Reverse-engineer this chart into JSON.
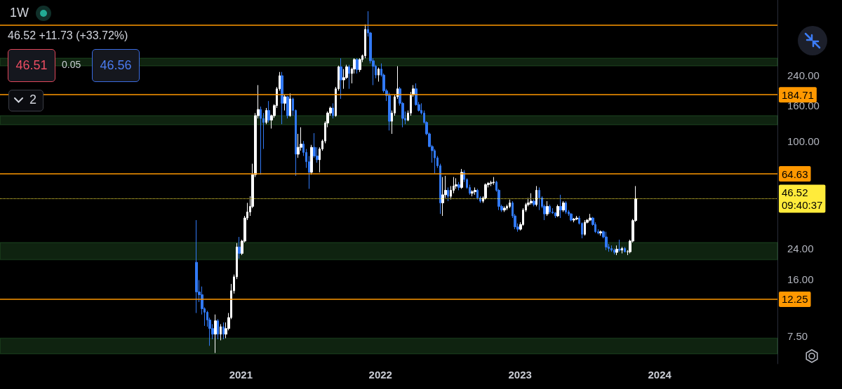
{
  "chart_data": {
    "type": "candlestick",
    "title": "1W",
    "annotations": [
      "46.52 +11.73 (+33.72%)",
      "46.51",
      "0.05",
      "46.56",
      "2",
      "09:40:37"
    ],
    "x": [
      "2020-09-07",
      "2020-09-14",
      "2020-09-21",
      "2020-09-28",
      "2020-10-05",
      "2020-10-12",
      "2020-10-19",
      "2020-10-26",
      "2020-11-02",
      "2020-11-09",
      "2020-11-16",
      "2020-11-23",
      "2020-11-30",
      "2020-12-07",
      "2020-12-14",
      "2020-12-21",
      "2020-12-28",
      "2021-01-04",
      "2021-01-11",
      "2021-01-18",
      "2021-01-25",
      "2021-02-01",
      "2021-02-08",
      "2021-02-15",
      "2021-02-22",
      "2021-03-01",
      "2021-03-08",
      "2021-03-15",
      "2021-03-22",
      "2021-03-29",
      "2021-04-05",
      "2021-04-12",
      "2021-04-19",
      "2021-04-26",
      "2021-05-03",
      "2021-05-10",
      "2021-05-17",
      "2021-05-24",
      "2021-05-31",
      "2021-06-07",
      "2021-06-14",
      "2021-06-21",
      "2021-06-28",
      "2021-07-05",
      "2021-07-12",
      "2021-07-19",
      "2021-07-26",
      "2021-08-02",
      "2021-08-09",
      "2021-08-16",
      "2021-08-23",
      "2021-08-30",
      "2021-09-06",
      "2021-09-13",
      "2021-09-20",
      "2021-09-27",
      "2021-10-04",
      "2021-10-11",
      "2021-10-18",
      "2021-10-25",
      "2021-11-01",
      "2021-11-08",
      "2021-11-15",
      "2021-11-22",
      "2021-11-29",
      "2021-12-06",
      "2021-12-13",
      "2021-12-20",
      "2021-12-27",
      "2022-01-03",
      "2022-01-10",
      "2022-01-17",
      "2022-01-24",
      "2022-01-31",
      "2022-02-07",
      "2022-02-14",
      "2022-02-21",
      "2022-02-28",
      "2022-03-07",
      "2022-03-14",
      "2022-03-21",
      "2022-03-28",
      "2022-04-04",
      "2022-04-11",
      "2022-04-18",
      "2022-04-25",
      "2022-05-02",
      "2022-05-09",
      "2022-05-16",
      "2022-05-23",
      "2022-05-30",
      "2022-06-06",
      "2022-06-13",
      "2022-06-20",
      "2022-06-27",
      "2022-07-04",
      "2022-07-11",
      "2022-07-18",
      "2022-07-25",
      "2022-08-01",
      "2022-08-08",
      "2022-08-15",
      "2022-08-22",
      "2022-08-29",
      "2022-09-05",
      "2022-09-12",
      "2022-09-19",
      "2022-09-26",
      "2022-10-03",
      "2022-10-10",
      "2022-10-17",
      "2022-10-24",
      "2022-10-31",
      "2022-11-07",
      "2022-11-14",
      "2022-11-21",
      "2022-11-28",
      "2022-12-05",
      "2022-12-12",
      "2022-12-19",
      "2022-12-26",
      "2023-01-02",
      "2023-01-09",
      "2023-01-16",
      "2023-01-23",
      "2023-01-30",
      "2023-02-06",
      "2023-02-13",
      "2023-02-20",
      "2023-02-27",
      "2023-03-06",
      "2023-03-13",
      "2023-03-20",
      "2023-03-27",
      "2023-04-03",
      "2023-04-10",
      "2023-04-17",
      "2023-04-24",
      "2023-05-01",
      "2023-05-08",
      "2023-05-15",
      "2023-05-22",
      "2023-05-29",
      "2023-06-05",
      "2023-06-12",
      "2023-06-19",
      "2023-06-26",
      "2023-07-03",
      "2023-07-10",
      "2023-07-17",
      "2023-07-24",
      "2023-07-31",
      "2023-08-07",
      "2023-08-14",
      "2023-08-21",
      "2023-08-28",
      "2023-09-04",
      "2023-09-11",
      "2023-09-18",
      "2023-09-25",
      "2023-10-02",
      "2023-10-09",
      "2023-10-16",
      "2023-10-23",
      "2023-10-30"
    ],
    "ohlc": [
      [
        20,
        35,
        10.2,
        13.5
      ],
      [
        13.5,
        15.8,
        11.8,
        13
      ],
      [
        13,
        14.5,
        10,
        10.8
      ],
      [
        10.8,
        11,
        8.6,
        10.3
      ],
      [
        10.3,
        10.5,
        8.5,
        9.3
      ],
      [
        9.3,
        9.6,
        6.6,
        8.3
      ],
      [
        8.3,
        8.8,
        7.2,
        7.7
      ],
      [
        7.7,
        10,
        6,
        9.2
      ],
      [
        9.2,
        9.4,
        7.2,
        7.7
      ],
      [
        7.7,
        8.8,
        7.1,
        8.5
      ],
      [
        8.5,
        9,
        7.2,
        7.7
      ],
      [
        7.7,
        9,
        7.3,
        8.3
      ],
      [
        8.3,
        10.2,
        8.1,
        9.6
      ],
      [
        9.6,
        15,
        9.4,
        13.7
      ],
      [
        13.7,
        17,
        13.2,
        16.5
      ],
      [
        16.5,
        25.8,
        16,
        24.5
      ],
      [
        24.5,
        28,
        21,
        22.5
      ],
      [
        22.5,
        27,
        22,
        26.5
      ],
      [
        26.5,
        37,
        26,
        36
      ],
      [
        36,
        44,
        35,
        39
      ],
      [
        39,
        48,
        37,
        42
      ],
      [
        42,
        74,
        41,
        64
      ],
      [
        64,
        145,
        62,
        140
      ],
      [
        140,
        210,
        135,
        152
      ],
      [
        152,
        158,
        64,
        135
      ],
      [
        135,
        145,
        90,
        128
      ],
      [
        128,
        155,
        125,
        150
      ],
      [
        150,
        170,
        128,
        132
      ],
      [
        132,
        142,
        118,
        140
      ],
      [
        140,
        163,
        136,
        160
      ],
      [
        160,
        205,
        155,
        200
      ],
      [
        200,
        250,
        195,
        238
      ],
      [
        238,
        250,
        125,
        165
      ],
      [
        165,
        185,
        150,
        180
      ],
      [
        180,
        182,
        135,
        140
      ],
      [
        140,
        188,
        138,
        175
      ],
      [
        175,
        178,
        140,
        150
      ],
      [
        150,
        152,
        63,
        84
      ],
      [
        84,
        110,
        80,
        92
      ],
      [
        92,
        120,
        88,
        96
      ],
      [
        96,
        100,
        82,
        86
      ],
      [
        86,
        90,
        70,
        76
      ],
      [
        76,
        82,
        53,
        66
      ],
      [
        66,
        95,
        64,
        92
      ],
      [
        92,
        111,
        80,
        82
      ],
      [
        82,
        92,
        75,
        78
      ],
      [
        78,
        92,
        66,
        90
      ],
      [
        90,
        102,
        88,
        100
      ],
      [
        100,
        130,
        97,
        127
      ],
      [
        127,
        148,
        120,
        145
      ],
      [
        145,
        158,
        140,
        155
      ],
      [
        155,
        165,
        135,
        140
      ],
      [
        140,
        205,
        138,
        200
      ],
      [
        200,
        272,
        195,
        268
      ],
      [
        268,
        300,
        175,
        225
      ],
      [
        225,
        260,
        200,
        232
      ],
      [
        232,
        275,
        228,
        268
      ],
      [
        268,
        275,
        200,
        245
      ],
      [
        245,
        265,
        215,
        260
      ],
      [
        260,
        300,
        245,
        295
      ],
      [
        295,
        300,
        245,
        258
      ],
      [
        258,
        300,
        250,
        295
      ],
      [
        295,
        315,
        285,
        310
      ],
      [
        310,
        470,
        300,
        440
      ],
      [
        440,
        560,
        400,
        420
      ],
      [
        420,
        425,
        280,
        290
      ],
      [
        290,
        300,
        210,
        270
      ],
      [
        270,
        275,
        230,
        240
      ],
      [
        240,
        265,
        220,
        260
      ],
      [
        260,
        280,
        235,
        240
      ],
      [
        240,
        245,
        190,
        195
      ],
      [
        195,
        200,
        170,
        183
      ],
      [
        183,
        190,
        115,
        130
      ],
      [
        130,
        150,
        110,
        145
      ],
      [
        145,
        185,
        140,
        180
      ],
      [
        180,
        270,
        175,
        200
      ],
      [
        200,
        205,
        160,
        165
      ],
      [
        165,
        168,
        120,
        135
      ],
      [
        135,
        148,
        125,
        132
      ],
      [
        132,
        150,
        130,
        145
      ],
      [
        145,
        192,
        140,
        185
      ],
      [
        185,
        210,
        180,
        200
      ],
      [
        200,
        215,
        160,
        162
      ],
      [
        162,
        168,
        148,
        150
      ],
      [
        150,
        165,
        142,
        145
      ],
      [
        145,
        150,
        126,
        128
      ],
      [
        128,
        130,
        108,
        110
      ],
      [
        110,
        112,
        92,
        93
      ],
      [
        93,
        95,
        75,
        88
      ],
      [
        88,
        90,
        65,
        80
      ],
      [
        80,
        82,
        70,
        72
      ],
      [
        72,
        74,
        38,
        44
      ],
      [
        44,
        62,
        37,
        49
      ],
      [
        49,
        63,
        47,
        52
      ],
      [
        52,
        54,
        45,
        48
      ],
      [
        48,
        55,
        46,
        52
      ],
      [
        52,
        62,
        50,
        55
      ],
      [
        55,
        61,
        53,
        56
      ],
      [
        56,
        58,
        52,
        54
      ],
      [
        54,
        69,
        53,
        66
      ],
      [
        66,
        68,
        58,
        60
      ],
      [
        60,
        61,
        53,
        54
      ],
      [
        54,
        56,
        49,
        50
      ],
      [
        50,
        52,
        48,
        51
      ],
      [
        51,
        54,
        49,
        52
      ],
      [
        52,
        53,
        46,
        47
      ],
      [
        47,
        48,
        44,
        45
      ],
      [
        45,
        48,
        44,
        47
      ],
      [
        47,
        57,
        46,
        56
      ],
      [
        56,
        58,
        54,
        57
      ],
      [
        57,
        59,
        55,
        57.5
      ],
      [
        57.5,
        62,
        56,
        58
      ],
      [
        58,
        59,
        51,
        52
      ],
      [
        52,
        53,
        40,
        42
      ],
      [
        42,
        43,
        39,
        40
      ],
      [
        40,
        42,
        39,
        41
      ],
      [
        41,
        43,
        40,
        42
      ],
      [
        42,
        46,
        41,
        44
      ],
      [
        44,
        45,
        36,
        37
      ],
      [
        37,
        38,
        31,
        32
      ],
      [
        32,
        33.5,
        30,
        31
      ],
      [
        31,
        34,
        30.5,
        33
      ],
      [
        33,
        41,
        32.5,
        40
      ],
      [
        40,
        44,
        39,
        43
      ],
      [
        43,
        47,
        42,
        44
      ],
      [
        44,
        50,
        43,
        45
      ],
      [
        45,
        46,
        42,
        43
      ],
      [
        43,
        55,
        42,
        52
      ],
      [
        52,
        54,
        40,
        47
      ],
      [
        47,
        48,
        41,
        42
      ],
      [
        42,
        43,
        35,
        38
      ],
      [
        38,
        45,
        37,
        42
      ],
      [
        42,
        43,
        38,
        39
      ],
      [
        39,
        41,
        38,
        38.5
      ],
      [
        38.5,
        39,
        36,
        37
      ],
      [
        37,
        43,
        36.5,
        42
      ],
      [
        42,
        49,
        36,
        40
      ],
      [
        40,
        45,
        39,
        44
      ],
      [
        44,
        45,
        38,
        39
      ],
      [
        39,
        40,
        37,
        38
      ],
      [
        38,
        38.5,
        34.5,
        35
      ],
      [
        35,
        36,
        34,
        35.5
      ],
      [
        35.5,
        37,
        35,
        36
      ],
      [
        36,
        37,
        33,
        33.5
      ],
      [
        33.5,
        34,
        27.5,
        29
      ],
      [
        29,
        35,
        28.5,
        34
      ],
      [
        34,
        35.5,
        33.5,
        35
      ],
      [
        35,
        38,
        34.5,
        36
      ],
      [
        36,
        36.5,
        32.5,
        33
      ],
      [
        33,
        34,
        29.5,
        30
      ],
      [
        30,
        31,
        29,
        29.5
      ],
      [
        29.5,
        30.5,
        28.5,
        30
      ],
      [
        30,
        30.5,
        27.5,
        28
      ],
      [
        28,
        30,
        23.5,
        24.5
      ],
      [
        24.5,
        25.5,
        23,
        24
      ],
      [
        24,
        25,
        23,
        23.5
      ],
      [
        23.5,
        24,
        22.2,
        22.8
      ],
      [
        22.8,
        25,
        22,
        23.8
      ],
      [
        23.8,
        27,
        23,
        23.5
      ],
      [
        23.5,
        24.5,
        22.5,
        24
      ],
      [
        24,
        24.5,
        22.8,
        23
      ],
      [
        23,
        23.5,
        22,
        23
      ],
      [
        23,
        27,
        22.5,
        26.5
      ],
      [
        26.5,
        35.5,
        26,
        34.79
      ],
      [
        34.79,
        55,
        34.2,
        46.52
      ]
    ],
    "log": "y",
    "ylim": [
      5.2,
      650
    ],
    "yticks": [
      {
        "value": 7.5,
        "label": "7.50"
      },
      {
        "value": 16,
        "label": "16.00"
      },
      {
        "value": 24,
        "label": "24.00"
      },
      {
        "value": 100,
        "label": "100.00"
      },
      {
        "value": 160,
        "label": "160.00"
      },
      {
        "value": 240,
        "label": "240.00"
      }
    ],
    "xlim": [
      "2019-04-12",
      "2024-11-04"
    ],
    "xticks": [
      "2021",
      "2022",
      "2023",
      "2024"
    ],
    "ref_lines": [
      {
        "axis": "y",
        "value": 465,
        "label": null,
        "color": "#ff9800"
      },
      {
        "axis": "y",
        "value": 184.71,
        "label": "184.71",
        "color": "#ff9800"
      },
      {
        "axis": "y",
        "value": 64.63,
        "label": "64.63",
        "color": "#ff9800"
      },
      {
        "axis": "y",
        "value": 12.25,
        "label": "12.25",
        "color": "#ff9800"
      },
      {
        "axis": "y",
        "value": 46.52,
        "label": "46.52",
        "color": "#ffeb3b",
        "line_style": "dotted"
      }
    ],
    "bands": [
      {
        "axis": "y",
        "from": 271,
        "to": 300,
        "color": "#4caf50"
      },
      {
        "axis": "y",
        "from": 124,
        "to": 140,
        "color": "#4caf50"
      },
      {
        "axis": "y",
        "from": 20.7,
        "to": 26,
        "color": "#4caf50"
      },
      {
        "axis": "y",
        "from": 5.94,
        "to": 7.3,
        "color": "#4caf50"
      }
    ]
  }
}
